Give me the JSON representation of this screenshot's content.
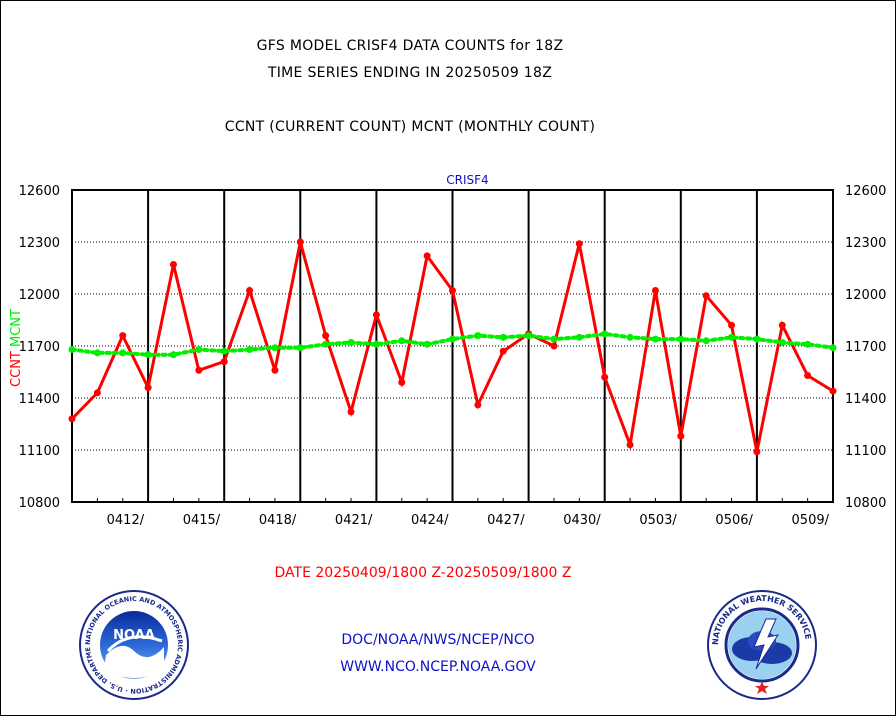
{
  "title_line1": "GFS MODEL CRISF4 DATA COUNTS for 18Z",
  "title_line2": "TIME SERIES ENDING IN 20250509 18Z",
  "title_line3": "CCNT (CURRENT COUNT) MCNT (MONTHLY COUNT)",
  "date_range": "DATE 20250409/1800 Z-20250509/1800 Z",
  "org_line": "DOC/NOAA/NWS/NCEP/NCO",
  "url_line": "WWW.NCO.NCEP.NOAA.GOV",
  "colors": {
    "ccnt": "#ff0000",
    "mcnt": "#00ee00",
    "panel_title": "#1010c8"
  },
  "chart_data": {
    "type": "line",
    "title": "CRISF4",
    "ylabel_ccnt": "CCNT",
    "ylabel_mcnt": "MCNT",
    "ylim": [
      10800,
      12600
    ],
    "yticks": [
      10800,
      11100,
      11400,
      11700,
      12000,
      12300,
      12600
    ],
    "grid": true,
    "x_tick_labels": [
      "0412/",
      "0415/",
      "0418/",
      "0421/",
      "0424/",
      "0427/",
      "0430/",
      "0503/",
      "0506/",
      "0509/"
    ],
    "x_start_date": "20250409/1800 Z",
    "x_end_date": "20250509/1800 Z",
    "series": [
      {
        "name": "CCNT",
        "style": "solid",
        "values": [
          11280,
          11430,
          11760,
          11460,
          12170,
          11560,
          11610,
          12020,
          11560,
          12300,
          11760,
          11320,
          11880,
          11490,
          12220,
          12020,
          11360,
          11670,
          11770,
          11700,
          12290,
          11520,
          11130,
          12020,
          11180,
          11990,
          11820,
          11090,
          11820,
          11530,
          11440
        ]
      },
      {
        "name": "MCNT",
        "style": "dotted",
        "values": [
          11680,
          11660,
          11660,
          11650,
          11650,
          11680,
          11670,
          11680,
          11690,
          11690,
          11710,
          11720,
          11710,
          11730,
          11710,
          11740,
          11760,
          11750,
          11760,
          11740,
          11750,
          11770,
          11750,
          11740,
          11740,
          11730,
          11750,
          11740,
          11720,
          11710,
          11690
        ]
      }
    ]
  },
  "logos": {
    "left": {
      "name": "noaa-logo",
      "text": "NOAA",
      "ring_text": "NATIONAL OCEANIC AND ATMOSPHERIC ADMINISTRATION · U.S. DEPARTMENT OF COMMERCE"
    },
    "right": {
      "name": "nws-logo",
      "ring_text": "NATIONAL WEATHER SERVICE"
    }
  }
}
